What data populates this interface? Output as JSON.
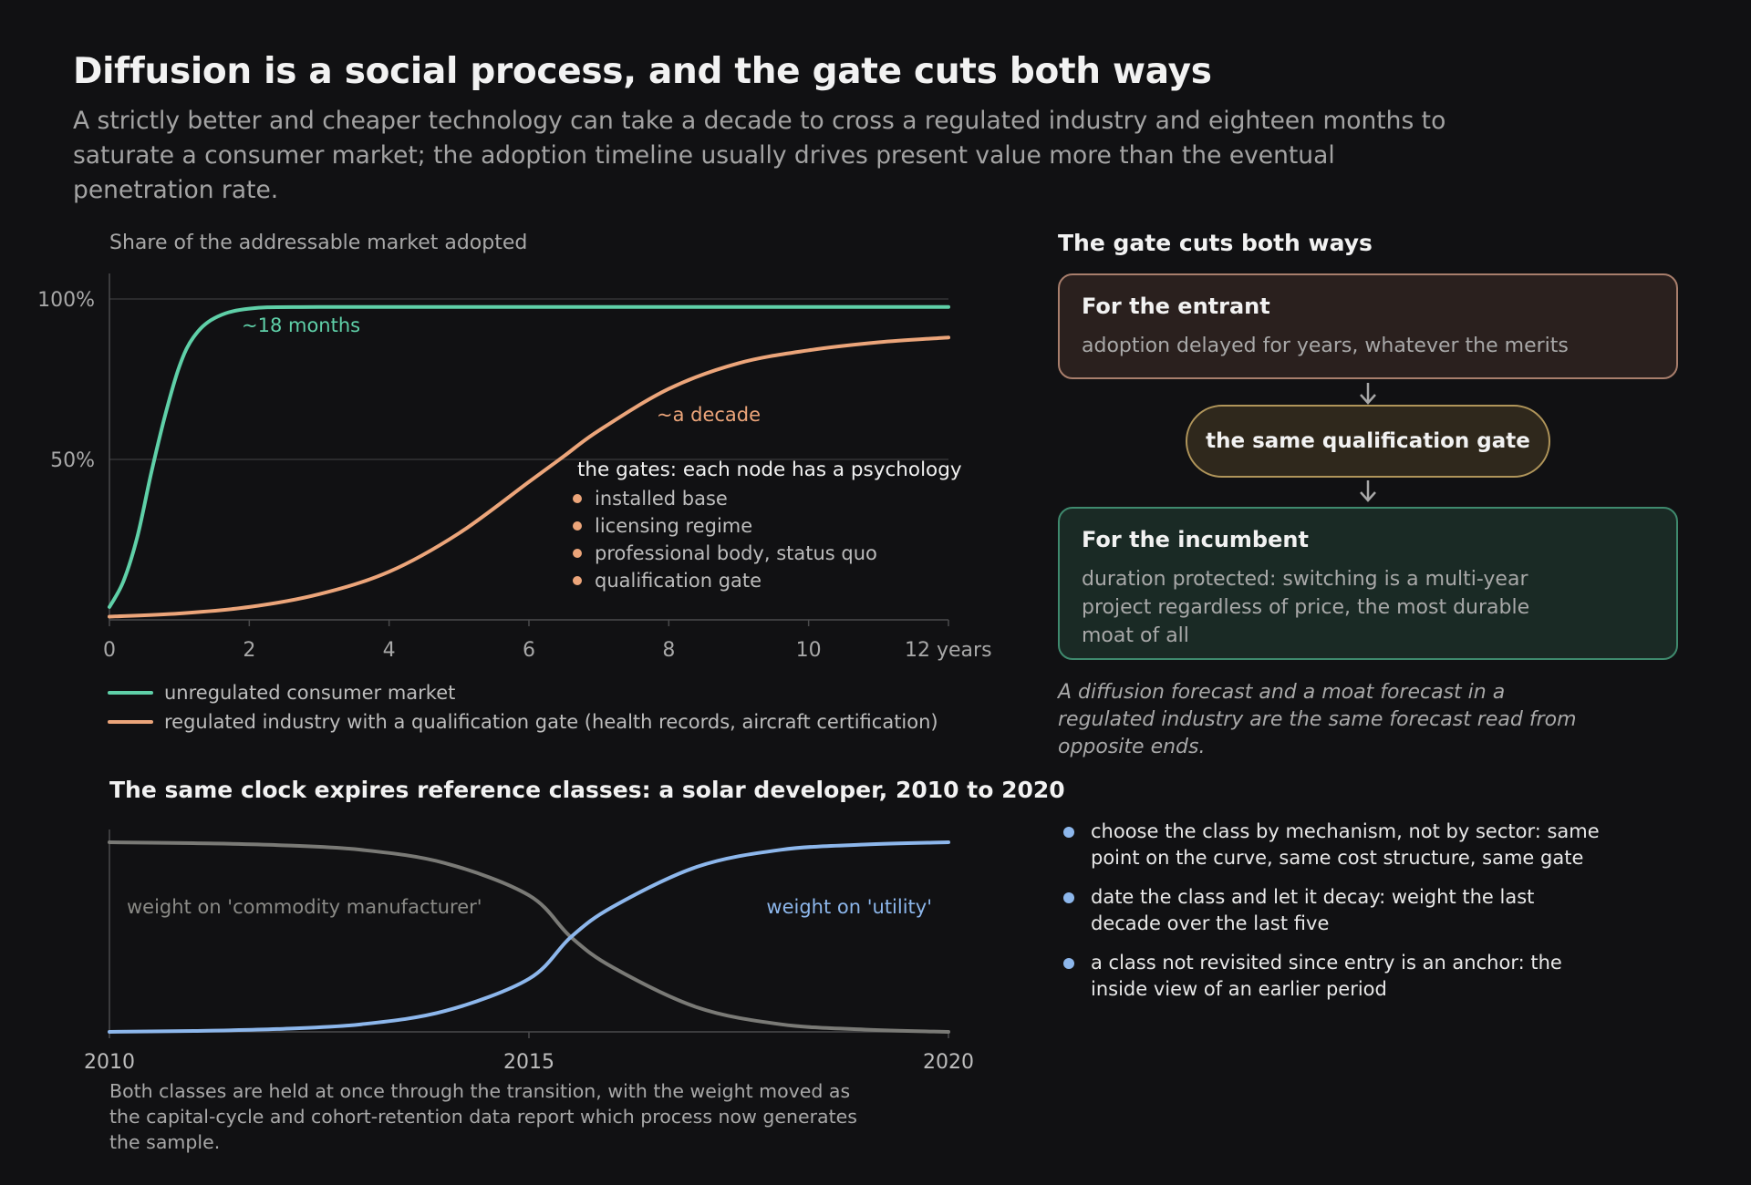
{
  "header": {
    "title": "Diffusion is a social process, and the gate cuts both ways",
    "subtitle_lines": [
      "A strictly better and cheaper technology can take a decade to cross a regulated industry and eighteen months to",
      "saturate a consumer market; the adoption timeline usually drives present value more than the eventual",
      "penetration rate."
    ]
  },
  "adoption_chart": {
    "label": "Share of the addressable market adopted",
    "annotation_fast": "~18 months",
    "annotation_slow": "~a decade",
    "gates_title": "the gates: each node has a psychology",
    "gates": [
      "installed base",
      "licensing regime",
      "professional body, status quo",
      "qualification gate"
    ],
    "legend": [
      {
        "label": "unregulated consumer market",
        "color": "#5fd0a8"
      },
      {
        "label": "regulated industry with a qualification gate (health records, aircraft certification)",
        "color": "#eca57a"
      }
    ]
  },
  "reference_chart": {
    "title": "The same clock expires reference classes: a solar developer, 2010 to 2020",
    "label_commodity": "weight on 'commodity manufacturer'",
    "label_utility": "weight on 'utility'",
    "caption_lines": [
      "Both classes are held at once through the transition, with the weight moved as",
      "the capital-cycle and cohort-retention data report which process now generates",
      "the sample."
    ]
  },
  "gate_panel": {
    "title": "The gate cuts both ways",
    "entrant_title": "For the entrant",
    "entrant_body": "adoption delayed for years, whatever the merits",
    "gate_label": "the same qualification gate",
    "incumbent_title": "For the incumbent",
    "incumbent_body_lines": [
      "duration protected: switching is a multi-year",
      "project regardless of price, the most durable",
      "moat of all"
    ],
    "note_lines": [
      "A diffusion forecast and a moat forecast in a",
      "regulated industry are the same forecast read from",
      "opposite ends."
    ],
    "bullets": [
      {
        "line1": "choose the class by mechanism, not by sector: same",
        "line2": "point on the curve, same cost structure, same gate"
      },
      {
        "line1": "date the class and let it decay: weight the last",
        "line2": "decade over the last five"
      },
      {
        "line1": "a class not revisited since entry is an anchor: the",
        "line2": "inside view of an earlier period"
      }
    ]
  },
  "colors": {
    "fast": "#5fd0a8",
    "slow": "#eca57a",
    "utility": "#8db7ec",
    "commodity": "#7a7a76",
    "entrant_border": "#a87e6c",
    "gate_border": "#b0955a",
    "incumbent_border": "#3f8a6e",
    "bullet": "#8db7ec"
  },
  "chart_data": [
    {
      "type": "line",
      "title": "Share of the addressable market adopted",
      "xlabel": "years",
      "xlim": [
        0,
        12
      ],
      "ylim": [
        0,
        100
      ],
      "x_ticks": [
        0,
        2,
        4,
        6,
        8,
        10,
        12
      ],
      "x_tick_labels": [
        "0",
        "2",
        "4",
        "6",
        "8",
        "10",
        "12 years"
      ],
      "y_ticks": [
        50,
        100
      ],
      "y_tick_labels": [
        "50%",
        "100%"
      ],
      "grid": "horizontal",
      "legend_position": "bottom",
      "series": [
        {
          "name": "unregulated consumer market",
          "x": [
            0,
            0.2,
            0.4,
            0.6,
            0.8,
            1.0,
            1.2,
            1.5,
            2,
            3,
            6,
            9,
            12
          ],
          "y": [
            4,
            12,
            26,
            46,
            64,
            79,
            88,
            94,
            97,
            97.5,
            97.5,
            97.5,
            97.5
          ]
        },
        {
          "name": "regulated industry with a qualification gate (health records, aircraft certification)",
          "x": [
            0,
            1,
            2,
            3,
            4,
            5,
            6,
            6.5,
            7,
            8,
            9,
            10,
            11,
            12
          ],
          "y": [
            1,
            2,
            4,
            8,
            15,
            27,
            43,
            51,
            59,
            72,
            80,
            84,
            86.5,
            88
          ]
        }
      ]
    },
    {
      "type": "line",
      "title": "The same clock expires reference classes: a solar developer, 2010 to 2020",
      "x_ticks": [
        2010,
        2015,
        2020
      ],
      "xlim": [
        2010,
        2020
      ],
      "ylim": [
        0,
        1
      ],
      "grid": "off",
      "series": [
        {
          "name": "weight on 'commodity manufacturer'",
          "x": [
            2010,
            2011,
            2012,
            2013,
            2014,
            2015,
            2015.5,
            2016,
            2017,
            2018,
            2019,
            2020
          ],
          "y": [
            1.0,
            0.995,
            0.985,
            0.96,
            0.89,
            0.72,
            0.5,
            0.34,
            0.13,
            0.04,
            0.012,
            0.0
          ]
        },
        {
          "name": "weight on 'utility'",
          "x": [
            2010,
            2011,
            2012,
            2013,
            2014,
            2015,
            2015.5,
            2016,
            2017,
            2018,
            2019,
            2020
          ],
          "y": [
            0.0,
            0.005,
            0.015,
            0.04,
            0.11,
            0.28,
            0.5,
            0.66,
            0.87,
            0.96,
            0.988,
            1.0
          ]
        }
      ]
    }
  ]
}
